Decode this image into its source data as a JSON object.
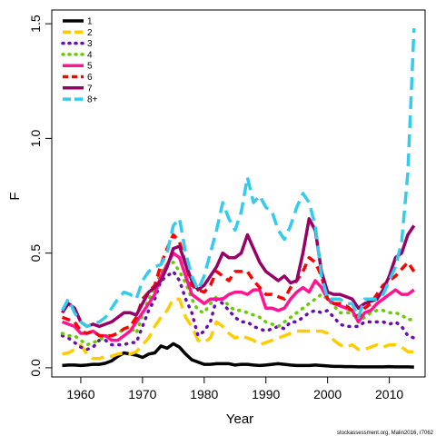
{
  "chart_data": {
    "type": "line",
    "title": "",
    "xlabel": "Year",
    "ylabel": "F",
    "xlim": [
      1955.3,
      2015.8
    ],
    "ylim": [
      -0.04,
      1.56
    ],
    "xticks": [
      1960,
      1970,
      1980,
      1990,
      2000,
      2010
    ],
    "yticks": [
      0.0,
      0.5,
      1.0,
      1.5
    ],
    "ytick_labels": [
      "0.0",
      "0.5",
      "1.0",
      "1.5"
    ],
    "grid": false,
    "legend_position": "top-left",
    "x": [
      1957,
      1958,
      1959,
      1960,
      1961,
      1962,
      1963,
      1964,
      1965,
      1966,
      1967,
      1968,
      1969,
      1970,
      1971,
      1972,
      1973,
      1974,
      1975,
      1976,
      1977,
      1978,
      1979,
      1980,
      1981,
      1982,
      1983,
      1984,
      1985,
      1986,
      1987,
      1988,
      1989,
      1990,
      1991,
      1992,
      1993,
      1994,
      1995,
      1996,
      1997,
      1998,
      1999,
      2000,
      2001,
      2002,
      2003,
      2004,
      2005,
      2006,
      2007,
      2008,
      2009,
      2010,
      2011,
      2012,
      2013,
      2014
    ],
    "series": [
      {
        "name": "1",
        "color": "#000000",
        "dash": "solid",
        "values": [
          0.01,
          0.012,
          0.012,
          0.01,
          0.012,
          0.015,
          0.015,
          0.02,
          0.03,
          0.05,
          0.065,
          0.06,
          0.055,
          0.045,
          0.06,
          0.065,
          0.095,
          0.085,
          0.105,
          0.09,
          0.06,
          0.035,
          0.025,
          0.015,
          0.015,
          0.018,
          0.018,
          0.018,
          0.012,
          0.015,
          0.015,
          0.012,
          0.01,
          0.012,
          0.015,
          0.018,
          0.015,
          0.012,
          0.01,
          0.01,
          0.01,
          0.012,
          0.01,
          0.008,
          0.006,
          0.006,
          0.005,
          0.005,
          0.004,
          0.004,
          0.004,
          0.004,
          0.004,
          0.005,
          0.004,
          0.004,
          0.004,
          0.003
        ]
      },
      {
        "name": "2",
        "color": "#FFCC00",
        "dash": "longdash",
        "values": [
          0.06,
          0.065,
          0.08,
          0.1,
          0.06,
          0.04,
          0.04,
          0.05,
          0.05,
          0.06,
          0.065,
          0.06,
          0.07,
          0.1,
          0.13,
          0.18,
          0.22,
          0.25,
          0.3,
          0.3,
          0.22,
          0.18,
          0.12,
          0.11,
          0.13,
          0.2,
          0.18,
          0.15,
          0.13,
          0.14,
          0.13,
          0.12,
          0.1,
          0.11,
          0.12,
          0.13,
          0.14,
          0.15,
          0.16,
          0.16,
          0.16,
          0.16,
          0.16,
          0.15,
          0.12,
          0.1,
          0.09,
          0.1,
          0.08,
          0.08,
          0.09,
          0.1,
          0.09,
          0.1,
          0.1,
          0.09,
          0.07,
          0.07
        ]
      },
      {
        "name": "3",
        "color": "#6A0DAD",
        "dash": "dot",
        "values": [
          0.14,
          0.13,
          0.11,
          0.09,
          0.08,
          0.09,
          0.12,
          0.12,
          0.1,
          0.1,
          0.1,
          0.11,
          0.11,
          0.18,
          0.25,
          0.3,
          0.38,
          0.4,
          0.42,
          0.38,
          0.3,
          0.24,
          0.14,
          0.16,
          0.2,
          0.3,
          0.28,
          0.25,
          0.22,
          0.2,
          0.2,
          0.18,
          0.17,
          0.16,
          0.17,
          0.18,
          0.17,
          0.2,
          0.2,
          0.22,
          0.24,
          0.25,
          0.24,
          0.25,
          0.22,
          0.19,
          0.18,
          0.18,
          0.18,
          0.2,
          0.2,
          0.2,
          0.2,
          0.19,
          0.2,
          0.18,
          0.14,
          0.13
        ]
      },
      {
        "name": "4",
        "color": "#66CC00",
        "dash": "dot",
        "values": [
          0.15,
          0.14,
          0.14,
          0.12,
          0.1,
          0.11,
          0.12,
          0.14,
          0.14,
          0.15,
          0.17,
          0.18,
          0.15,
          0.23,
          0.3,
          0.35,
          0.42,
          0.45,
          0.46,
          0.42,
          0.37,
          0.3,
          0.25,
          0.24,
          0.28,
          0.31,
          0.3,
          0.27,
          0.25,
          0.25,
          0.24,
          0.23,
          0.22,
          0.2,
          0.19,
          0.18,
          0.2,
          0.22,
          0.24,
          0.26,
          0.28,
          0.3,
          0.32,
          0.3,
          0.27,
          0.24,
          0.24,
          0.24,
          0.2,
          0.22,
          0.24,
          0.25,
          0.25,
          0.24,
          0.24,
          0.23,
          0.21,
          0.21
        ]
      },
      {
        "name": "5",
        "color": "#FF1493",
        "dash": "solid",
        "values": [
          0.2,
          0.19,
          0.18,
          0.15,
          0.15,
          0.16,
          0.14,
          0.14,
          0.12,
          0.12,
          0.14,
          0.16,
          0.2,
          0.24,
          0.28,
          0.32,
          0.4,
          0.45,
          0.5,
          0.48,
          0.4,
          0.32,
          0.3,
          0.28,
          0.3,
          0.3,
          0.3,
          0.32,
          0.33,
          0.33,
          0.32,
          0.34,
          0.34,
          0.26,
          0.26,
          0.25,
          0.26,
          0.3,
          0.33,
          0.35,
          0.33,
          0.38,
          0.35,
          0.3,
          0.28,
          0.27,
          0.26,
          0.25,
          0.2,
          0.24,
          0.25,
          0.28,
          0.3,
          0.32,
          0.34,
          0.32,
          0.32,
          0.34
        ]
      },
      {
        "name": "6",
        "color": "#FF0000",
        "dash": "dash",
        "values": [
          0.22,
          0.21,
          0.2,
          0.16,
          0.15,
          0.16,
          0.14,
          0.14,
          0.14,
          0.15,
          0.17,
          0.18,
          0.22,
          0.3,
          0.33,
          0.36,
          0.45,
          0.52,
          0.58,
          0.55,
          0.45,
          0.36,
          0.34,
          0.33,
          0.36,
          0.42,
          0.4,
          0.38,
          0.42,
          0.42,
          0.42,
          0.38,
          0.35,
          0.32,
          0.32,
          0.31,
          0.3,
          0.35,
          0.38,
          0.42,
          0.48,
          0.46,
          0.4,
          0.3,
          0.28,
          0.28,
          0.27,
          0.25,
          0.22,
          0.26,
          0.28,
          0.32,
          0.36,
          0.38,
          0.4,
          0.43,
          0.46,
          0.42
        ]
      },
      {
        "name": "7",
        "color": "#990066",
        "dash": "solid",
        "values": [
          0.24,
          0.28,
          0.26,
          0.2,
          0.18,
          0.19,
          0.18,
          0.19,
          0.2,
          0.22,
          0.24,
          0.24,
          0.23,
          0.28,
          0.33,
          0.35,
          0.38,
          0.44,
          0.52,
          0.53,
          0.45,
          0.38,
          0.34,
          0.36,
          0.4,
          0.44,
          0.5,
          0.48,
          0.48,
          0.5,
          0.58,
          0.52,
          0.46,
          0.42,
          0.4,
          0.38,
          0.4,
          0.37,
          0.38,
          0.5,
          0.65,
          0.6,
          0.42,
          0.33,
          0.32,
          0.32,
          0.31,
          0.3,
          0.26,
          0.28,
          0.29,
          0.3,
          0.34,
          0.4,
          0.48,
          0.5,
          0.58,
          0.62
        ]
      },
      {
        "name": "8+",
        "color": "#33CCEE",
        "dash": "longdash",
        "values": [
          0.25,
          0.3,
          0.24,
          0.2,
          0.18,
          0.19,
          0.2,
          0.22,
          0.26,
          0.3,
          0.33,
          0.32,
          0.3,
          0.38,
          0.42,
          0.44,
          0.45,
          0.5,
          0.62,
          0.65,
          0.5,
          0.4,
          0.34,
          0.4,
          0.5,
          0.6,
          0.72,
          0.65,
          0.6,
          0.68,
          0.83,
          0.72,
          0.75,
          0.7,
          0.68,
          0.6,
          0.56,
          0.62,
          0.7,
          0.76,
          0.72,
          0.62,
          0.4,
          0.3,
          0.3,
          0.3,
          0.28,
          0.28,
          0.22,
          0.3,
          0.3,
          0.3,
          0.32,
          0.38,
          0.44,
          0.55,
          0.85,
          1.48
        ]
      }
    ],
    "footnote": "stockassessment.org, Malin2016, r7062"
  }
}
